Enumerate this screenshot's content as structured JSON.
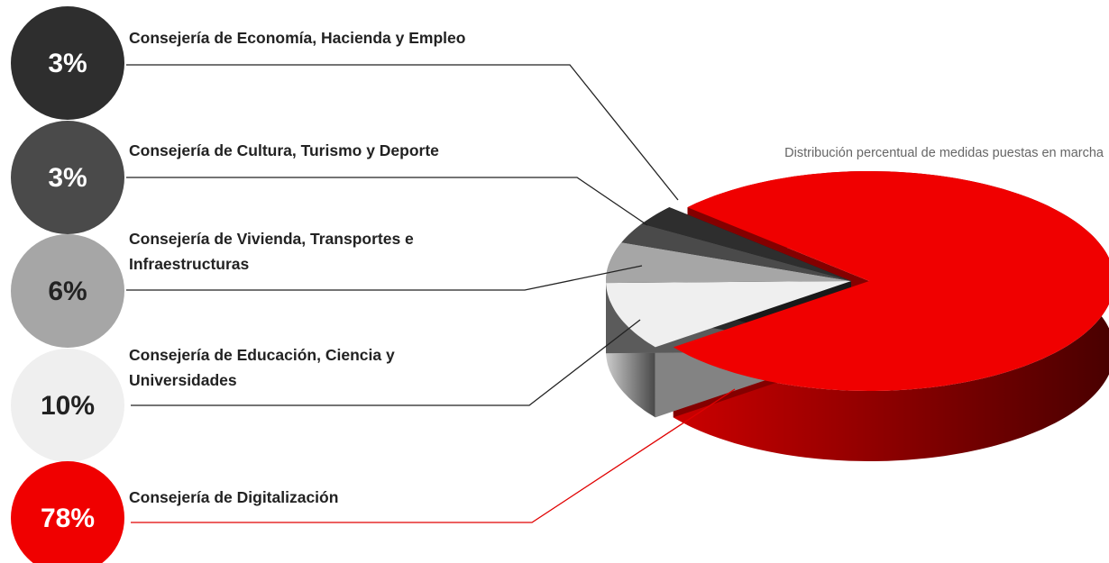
{
  "chart_data": {
    "type": "pie",
    "title": "Distribución percentual de medidas puestas en marcha",
    "categories": [
      "Consejería de Economía, Hacienda y Empleo",
      "Consejería de Cultura, Turismo y Deporte",
      "Consejería de Vivienda, Transportes e Infraestructuras",
      "Consejería de Educación, Ciencia y Universidades",
      "Consejería de Digitalización"
    ],
    "values": [
      3,
      3,
      6,
      10,
      78
    ],
    "value_labels": [
      "3%",
      "3%",
      "6%",
      "10%",
      "78%"
    ],
    "colors": [
      "#2e2e2e",
      "#4a4a4a",
      "#a6a6a6",
      "#efefef",
      "#f00000"
    ]
  }
}
